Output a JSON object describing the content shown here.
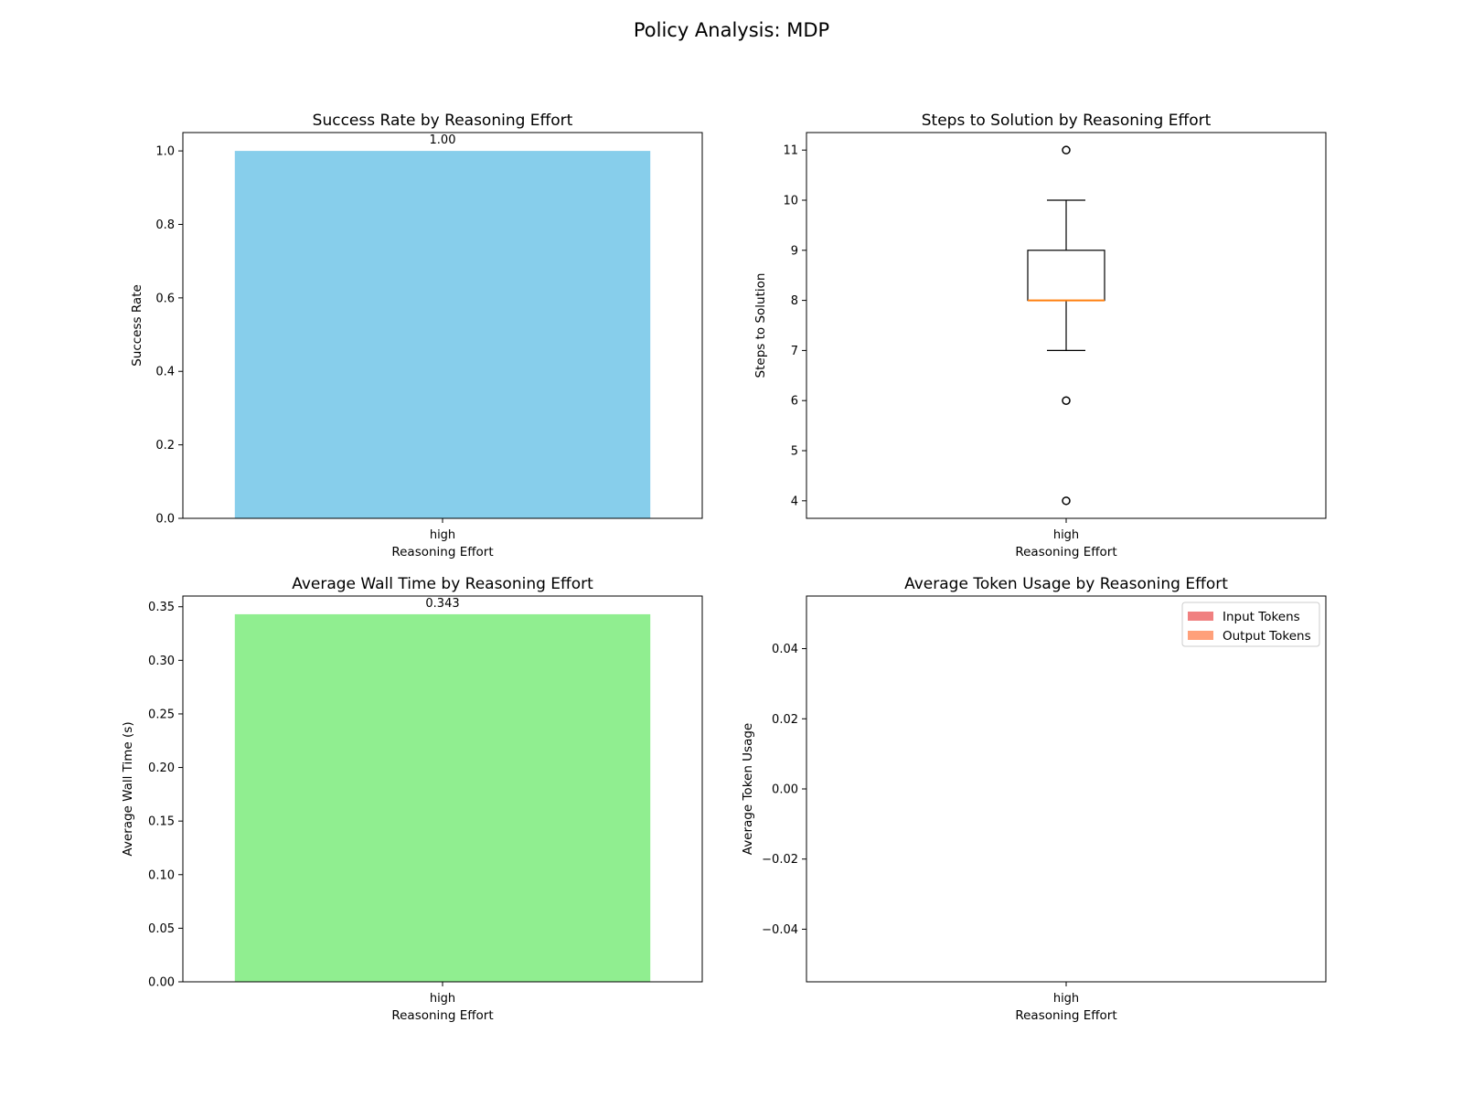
{
  "figure": {
    "suptitle": "Policy Analysis: MDP"
  },
  "chart_data": [
    {
      "type": "bar",
      "title": "Success Rate by Reasoning Effort",
      "xlabel": "Reasoning Effort",
      "ylabel": "Success Rate",
      "categories": [
        "high"
      ],
      "values": [
        1.0
      ],
      "data_labels": [
        "1.00"
      ],
      "ylim": [
        0,
        1.05
      ],
      "yticks": [
        0.0,
        0.2,
        0.4,
        0.6,
        0.8,
        1.0
      ],
      "ytick_labels": [
        "0.0",
        "0.2",
        "0.4",
        "0.6",
        "0.8",
        "1.0"
      ],
      "color": "#87CEEB",
      "grid": false
    },
    {
      "type": "box",
      "title": "Steps to Solution by Reasoning Effort",
      "xlabel": "Reasoning Effort",
      "ylabel": "Steps to Solution",
      "categories": [
        "high"
      ],
      "boxes": [
        {
          "q1": 8,
          "median": 8,
          "q3": 9,
          "whisker_low": 7,
          "whisker_high": 10,
          "outliers": [
            11,
            6,
            4
          ]
        }
      ],
      "ylim": [
        3.65,
        11.35
      ],
      "yticks": [
        4,
        5,
        6,
        7,
        8,
        9,
        10,
        11
      ],
      "ytick_labels": [
        "4",
        "5",
        "6",
        "7",
        "8",
        "9",
        "10",
        "11"
      ],
      "median_color": "#ff7f0e",
      "grid": false
    },
    {
      "type": "bar",
      "title": "Average Wall Time by Reasoning Effort",
      "xlabel": "Reasoning Effort",
      "ylabel": "Average Wall Time (s)",
      "categories": [
        "high"
      ],
      "values": [
        0.343
      ],
      "data_labels": [
        "0.343"
      ],
      "ylim": [
        0,
        0.36
      ],
      "yticks": [
        0.0,
        0.05,
        0.1,
        0.15,
        0.2,
        0.25,
        0.3,
        0.35
      ],
      "ytick_labels": [
        "0.00",
        "0.05",
        "0.10",
        "0.15",
        "0.20",
        "0.25",
        "0.30",
        "0.35"
      ],
      "color": "#90EE90",
      "grid": false
    },
    {
      "type": "bar",
      "title": "Average Token Usage by Reasoning Effort",
      "xlabel": "Reasoning Effort",
      "ylabel": "Average Token Usage",
      "categories": [
        "high"
      ],
      "series": [
        {
          "name": "Input Tokens",
          "values": [
            0
          ],
          "color": "#F08080"
        },
        {
          "name": "Output Tokens",
          "values": [
            0
          ],
          "color": "#FFA07A"
        }
      ],
      "ylim": [
        -0.055,
        0.055
      ],
      "yticks": [
        -0.04,
        -0.02,
        0.0,
        0.02,
        0.04
      ],
      "ytick_labels": [
        "−0.04",
        "−0.02",
        "0.00",
        "0.02",
        "0.04"
      ],
      "legend": "top-right",
      "grid": false
    }
  ]
}
